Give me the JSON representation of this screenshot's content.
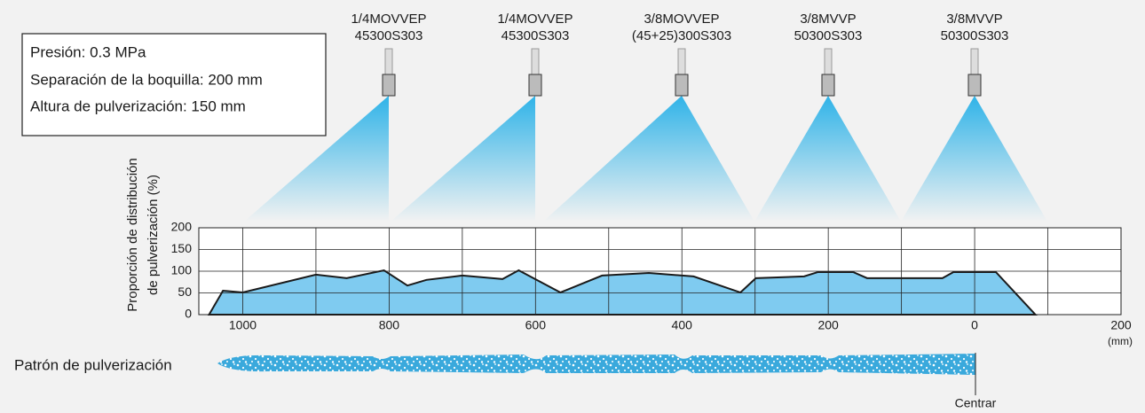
{
  "info": [
    "Presión: 0.3 MPa",
    "Separación de la boquilla: 200 mm",
    "Altura de pulverización: 150 mm"
  ],
  "nozzles": [
    {
      "model": "1/4MOVVEP",
      "code": "45300S303"
    },
    {
      "model": "1/4MOVVEP",
      "code": "45300S303"
    },
    {
      "model": "3/8MOVVEP",
      "code": "(45+25)300S303"
    },
    {
      "model": "3/8MVVP",
      "code": "50300S303"
    },
    {
      "model": "3/8MVVP",
      "code": "50300S303"
    }
  ],
  "pattern_label": "Patrón de pulverización",
  "center_label": "Centrar",
  "chart_data": {
    "type": "area",
    "y_label": [
      "Proporción de distribución",
      "de pulverización (%)"
    ],
    "x_unit": "(mm)",
    "x": [
      1046,
      1027,
      1000,
      900,
      858,
      807,
      775,
      749,
      700,
      645,
      623,
      566,
      509,
      445,
      384,
      320,
      299,
      233,
      214,
      166,
      147,
      44,
      29,
      -29,
      -83
    ],
    "values": [
      0,
      55,
      51,
      92,
      84,
      102,
      67,
      80,
      90,
      82,
      102,
      51,
      90,
      96,
      88,
      51,
      84,
      88,
      98,
      98,
      84,
      84,
      98,
      98,
      0
    ],
    "color": "#7fcbf0",
    "xlim": [
      1060,
      -200
    ],
    "xticks": [
      1000,
      800,
      600,
      400,
      200,
      0,
      {
        "value": -200,
        "label": "200"
      }
    ],
    "xgrid": [
      900,
      700,
      500,
      300,
      100,
      -100
    ],
    "ylim": [
      0,
      200
    ],
    "yticks": [
      0,
      50,
      100,
      150,
      200
    ],
    "grid": true
  }
}
